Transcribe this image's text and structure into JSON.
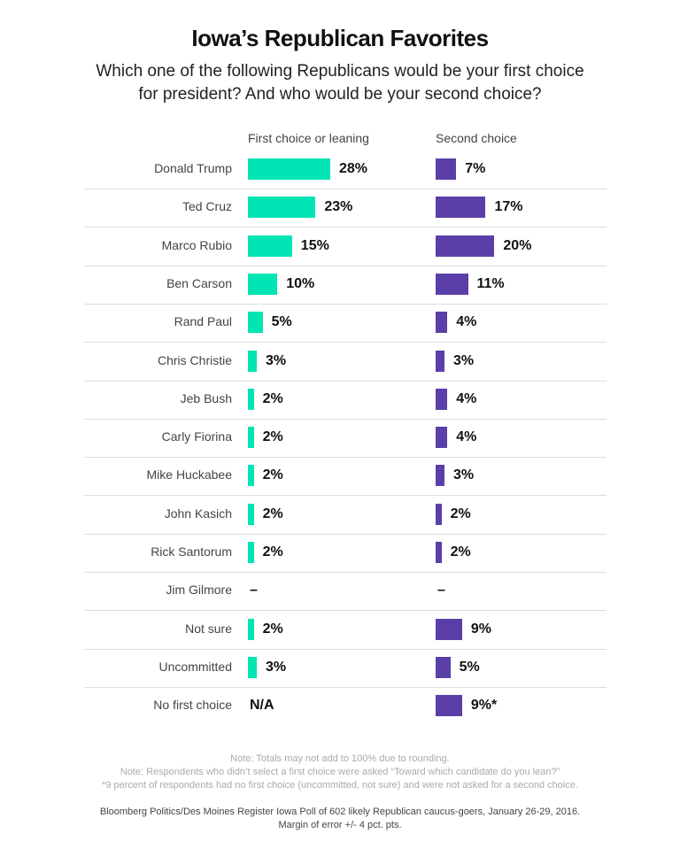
{
  "chart_data": {
    "type": "bar",
    "title": "Iowa’s Republican Favorites",
    "subtitle": "Which one of the following Republicans would be your first choice for president? And who would be your second choice?",
    "categories": [
      "Donald Trump",
      "Ted Cruz",
      "Marco Rubio",
      "Ben Carson",
      "Rand Paul",
      "Chris Christie",
      "Jeb Bush",
      "Carly Fiorina",
      "Mike Huckabee",
      "John Kasich",
      "Rick Santorum",
      "Jim Gilmore",
      "Not sure",
      "Uncommitted",
      "No first choice"
    ],
    "series": [
      {
        "name": "First choice or leaning",
        "color": "#00e5b4",
        "values": [
          28,
          23,
          15,
          10,
          5,
          3,
          2,
          2,
          2,
          2,
          2,
          null,
          2,
          3,
          null
        ],
        "labels": [
          "28%",
          "23%",
          "15%",
          "10%",
          "5%",
          "3%",
          "2%",
          "2%",
          "2%",
          "2%",
          "2%",
          "–",
          "2%",
          "3%",
          "N/A"
        ]
      },
      {
        "name": "Second choice",
        "color": "#5b3fa8",
        "values": [
          7,
          17,
          20,
          11,
          4,
          3,
          4,
          4,
          3,
          2,
          2,
          null,
          9,
          5,
          9
        ],
        "labels": [
          "7%",
          "17%",
          "20%",
          "11%",
          "4%",
          "3%",
          "4%",
          "4%",
          "3%",
          "2%",
          "2%",
          "–",
          "9%",
          "5%",
          "9%*"
        ]
      }
    ],
    "orientation": "horizontal",
    "grid": false
  },
  "notes": [
    "Note: Totals may not add to 100% due to rounding.",
    "Note: Respondents who didn’t select a first choice were asked “Toward which candidate do you lean?”",
    "*9 percent of respondents had no first choice (uncommitted, not sure) and were not asked for a second choice."
  ],
  "source": [
    "Bloomberg Politics/Des Moines Register Iowa Poll of 602 likely Republican caucus-goers, January 26-29, 2016.",
    "Margin of error +/- 4 pct. pts."
  ]
}
